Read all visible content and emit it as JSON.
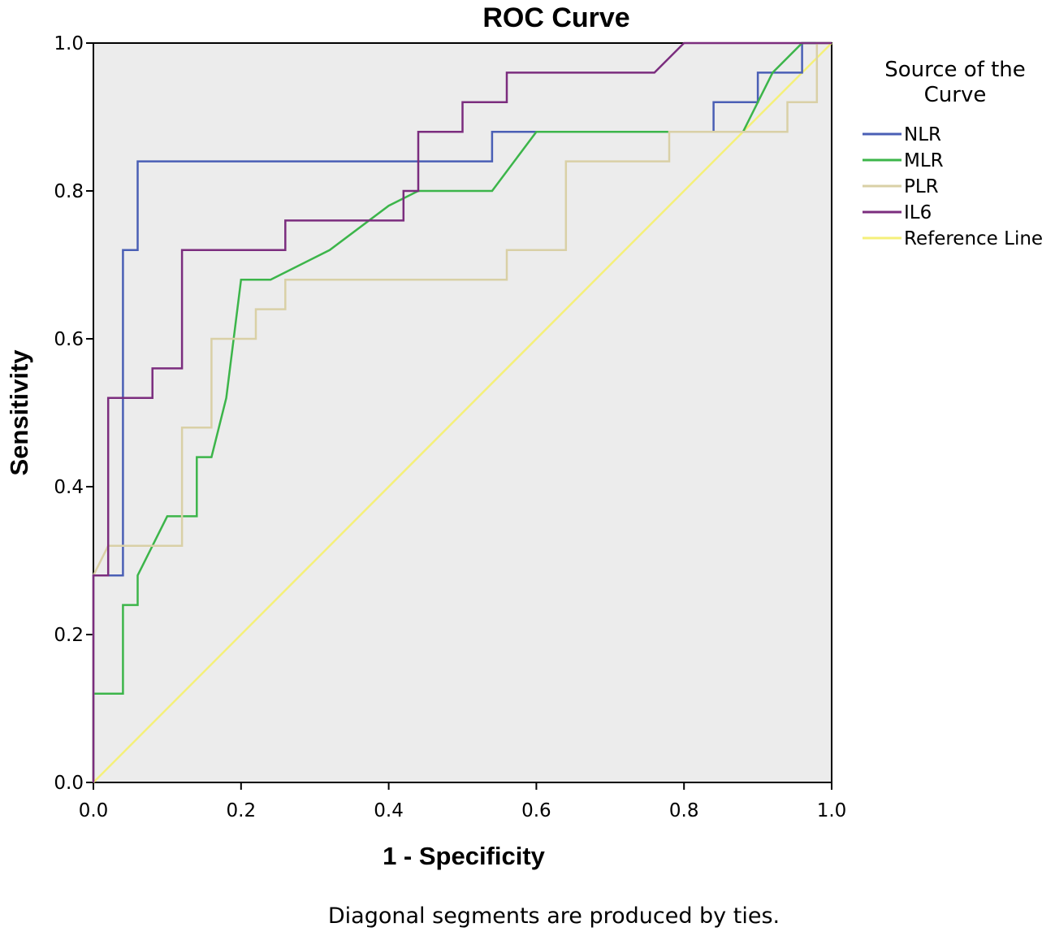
{
  "chart_data": {
    "type": "line",
    "title": "ROC Curve",
    "xlabel": "1 - Specificity",
    "ylabel": "Sensitivity",
    "xlim": [
      0,
      1
    ],
    "ylim": [
      0,
      1
    ],
    "x_ticks": [
      "0.0",
      "0.2",
      "0.4",
      "0.6",
      "0.8",
      "1.0"
    ],
    "y_ticks": [
      "0.0",
      "0.2",
      "0.4",
      "0.6",
      "0.8",
      "1.0"
    ],
    "grid": false,
    "legend": {
      "title_line1": "Source of the",
      "title_line2": "Curve",
      "placement": "right"
    },
    "footnote": "Diagonal segments are produced by ties.",
    "series": [
      {
        "name": "NLR",
        "color": "#4a5fb5",
        "points": [
          [
            0,
            0
          ],
          [
            0,
            0.28
          ],
          [
            0.04,
            0.28
          ],
          [
            0.04,
            0.72
          ],
          [
            0.06,
            0.72
          ],
          [
            0.06,
            0.84
          ],
          [
            0.54,
            0.84
          ],
          [
            0.54,
            0.88
          ],
          [
            0.84,
            0.88
          ],
          [
            0.84,
            0.92
          ],
          [
            0.9,
            0.92
          ],
          [
            0.9,
            0.96
          ],
          [
            0.96,
            0.96
          ],
          [
            0.96,
            1.0
          ],
          [
            1.0,
            1.0
          ]
        ]
      },
      {
        "name": "MLR",
        "color": "#3cb54a",
        "points": [
          [
            0,
            0
          ],
          [
            0,
            0.12
          ],
          [
            0.04,
            0.12
          ],
          [
            0.04,
            0.24
          ],
          [
            0.06,
            0.24
          ],
          [
            0.06,
            0.28
          ],
          [
            0.1,
            0.36
          ],
          [
            0.14,
            0.36
          ],
          [
            0.14,
            0.44
          ],
          [
            0.16,
            0.44
          ],
          [
            0.18,
            0.52
          ],
          [
            0.2,
            0.68
          ],
          [
            0.24,
            0.68
          ],
          [
            0.32,
            0.72
          ],
          [
            0.4,
            0.78
          ],
          [
            0.44,
            0.8
          ],
          [
            0.54,
            0.8
          ],
          [
            0.6,
            0.88
          ],
          [
            0.88,
            0.88
          ],
          [
            0.92,
            0.96
          ],
          [
            0.96,
            1.0
          ],
          [
            1.0,
            1.0
          ]
        ]
      },
      {
        "name": "PLR",
        "color": "#d9d0a6",
        "points": [
          [
            0,
            0
          ],
          [
            0,
            0.28
          ],
          [
            0.02,
            0.32
          ],
          [
            0.12,
            0.32
          ],
          [
            0.12,
            0.48
          ],
          [
            0.16,
            0.48
          ],
          [
            0.16,
            0.6
          ],
          [
            0.22,
            0.6
          ],
          [
            0.22,
            0.64
          ],
          [
            0.26,
            0.64
          ],
          [
            0.26,
            0.68
          ],
          [
            0.56,
            0.68
          ],
          [
            0.56,
            0.72
          ],
          [
            0.64,
            0.72
          ],
          [
            0.64,
            0.84
          ],
          [
            0.78,
            0.84
          ],
          [
            0.78,
            0.88
          ],
          [
            0.94,
            0.88
          ],
          [
            0.94,
            0.92
          ],
          [
            0.98,
            0.92
          ],
          [
            0.98,
            1.0
          ],
          [
            1.0,
            1.0
          ]
        ]
      },
      {
        "name": "IL6",
        "color": "#7b2d7e",
        "points": [
          [
            0,
            0
          ],
          [
            0,
            0.28
          ],
          [
            0.02,
            0.28
          ],
          [
            0.02,
            0.52
          ],
          [
            0.08,
            0.52
          ],
          [
            0.08,
            0.56
          ],
          [
            0.12,
            0.56
          ],
          [
            0.12,
            0.72
          ],
          [
            0.26,
            0.72
          ],
          [
            0.26,
            0.76
          ],
          [
            0.42,
            0.76
          ],
          [
            0.42,
            0.8
          ],
          [
            0.44,
            0.8
          ],
          [
            0.44,
            0.88
          ],
          [
            0.5,
            0.88
          ],
          [
            0.5,
            0.92
          ],
          [
            0.56,
            0.92
          ],
          [
            0.56,
            0.96
          ],
          [
            0.76,
            0.96
          ],
          [
            0.8,
            1.0
          ],
          [
            1.0,
            1.0
          ]
        ]
      },
      {
        "name": "Reference Line",
        "color": "#f5f07a",
        "points": [
          [
            0,
            0
          ],
          [
            1,
            1
          ]
        ]
      }
    ]
  }
}
